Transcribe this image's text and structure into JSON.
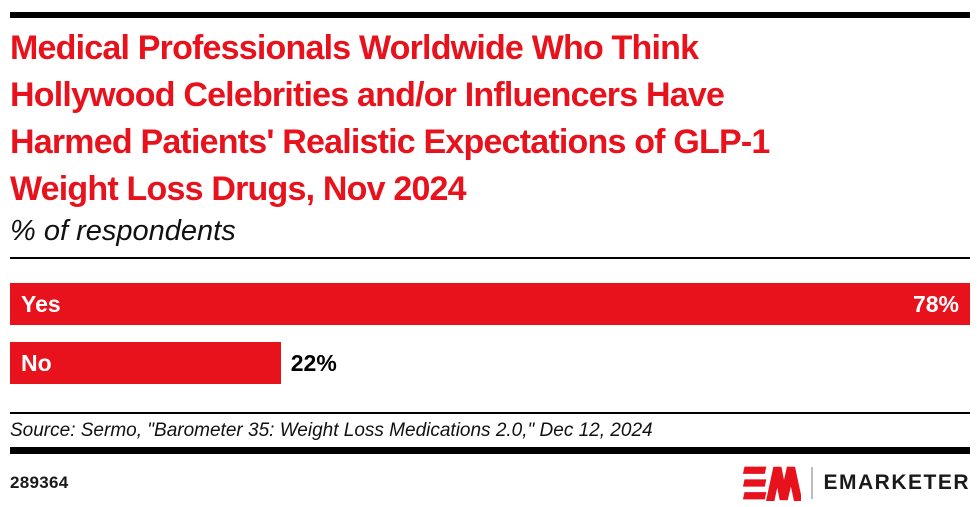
{
  "header": {
    "title_lines": [
      "Medical Professionals Worldwide Who Think",
      "Hollywood Celebrities and/or Influencers Have",
      "Harmed Patients' Realistic Expectations of GLP-1",
      "Weight Loss Drugs, Nov 2024"
    ],
    "subtitle": "% of respondents"
  },
  "chart_data": {
    "type": "bar",
    "orientation": "horizontal",
    "title": "Medical Professionals Worldwide Who Think Hollywood Celebrities and/or Influencers Have Harmed Patients' Realistic Expectations of GLP-1 Weight Loss Drugs, Nov 2024",
    "subtitle": "% of respondents",
    "categories": [
      "Yes",
      "No"
    ],
    "values": [
      78,
      22
    ],
    "value_labels": [
      "78%",
      "22%"
    ],
    "value_label_positions": [
      "inside-right",
      "outside-right"
    ],
    "bar_color": "#E8121D",
    "category_label_color": "#FFFFFF",
    "scale": {
      "min": 0,
      "max": 78
    },
    "grid": false,
    "legend": false
  },
  "footer": {
    "source": "Source: Sermo, \"Barometer 35: Weight Loss Medications 2.0,\" Dec 12, 2024",
    "chart_id": "289364",
    "brand_name": "EMARKETER"
  },
  "colors": {
    "accent_red": "#E8121D",
    "text_black": "#1A1A1A",
    "rule_black": "#000000"
  }
}
